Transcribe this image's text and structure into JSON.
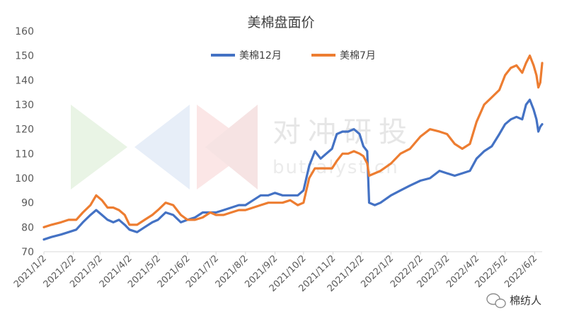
{
  "chart_data": {
    "type": "line",
    "title": "美棉盘面价",
    "xlabel": "",
    "ylabel": "",
    "ylim": [
      70,
      160
    ],
    "yticks": [
      70,
      80,
      90,
      100,
      110,
      120,
      130,
      140,
      150,
      160
    ],
    "x_ticks": [
      "2021/1/2",
      "2021/2/2",
      "2021/3/2",
      "2021/4/2",
      "2021/5/2",
      "2021/6/2",
      "2021/7/2",
      "2021/8/2",
      "2021/9/2",
      "2021/10/2",
      "2021/11/2",
      "2021/12/2",
      "2022/1/2",
      "2022/2/2",
      "2022/3/2",
      "2022/4/2",
      "2022/5/2",
      "2022/6/2"
    ],
    "xlim": [
      "2021-01-02",
      "2022-06-10"
    ],
    "grid": false,
    "legend_position": "top-center",
    "series": [
      {
        "name": "美棉12月",
        "color": "#4472C4",
        "points": [
          [
            "2021-01-02",
            75
          ],
          [
            "2021-01-10",
            76
          ],
          [
            "2021-01-20",
            77
          ],
          [
            "2021-01-28",
            78
          ],
          [
            "2021-02-05",
            79
          ],
          [
            "2021-02-12",
            82
          ],
          [
            "2021-02-20",
            85
          ],
          [
            "2021-02-26",
            87
          ],
          [
            "2021-03-04",
            85
          ],
          [
            "2021-03-10",
            83
          ],
          [
            "2021-03-16",
            82
          ],
          [
            "2021-03-22",
            83
          ],
          [
            "2021-03-28",
            81
          ],
          [
            "2021-04-02",
            79
          ],
          [
            "2021-04-10",
            78
          ],
          [
            "2021-04-18",
            80
          ],
          [
            "2021-04-26",
            82
          ],
          [
            "2021-05-02",
            83
          ],
          [
            "2021-05-10",
            86
          ],
          [
            "2021-05-18",
            85
          ],
          [
            "2021-05-26",
            82
          ],
          [
            "2021-06-02",
            83
          ],
          [
            "2021-06-10",
            84
          ],
          [
            "2021-06-18",
            86
          ],
          [
            "2021-06-26",
            86
          ],
          [
            "2021-07-02",
            86
          ],
          [
            "2021-07-10",
            87
          ],
          [
            "2021-07-18",
            88
          ],
          [
            "2021-07-26",
            89
          ],
          [
            "2021-08-02",
            89
          ],
          [
            "2021-08-10",
            91
          ],
          [
            "2021-08-18",
            93
          ],
          [
            "2021-08-26",
            93
          ],
          [
            "2021-09-02",
            94
          ],
          [
            "2021-09-10",
            93
          ],
          [
            "2021-09-18",
            93
          ],
          [
            "2021-09-26",
            93
          ],
          [
            "2021-10-02",
            95
          ],
          [
            "2021-10-08",
            105
          ],
          [
            "2021-10-14",
            111
          ],
          [
            "2021-10-20",
            108
          ],
          [
            "2021-10-26",
            110
          ],
          [
            "2021-11-01",
            112
          ],
          [
            "2021-11-06",
            118
          ],
          [
            "2021-11-12",
            119
          ],
          [
            "2021-11-18",
            119
          ],
          [
            "2021-11-24",
            120
          ],
          [
            "2021-11-30",
            118
          ],
          [
            "2021-12-04",
            113
          ],
          [
            "2021-12-08",
            111
          ],
          [
            "2021-12-10",
            90
          ],
          [
            "2021-12-16",
            89
          ],
          [
            "2021-12-22",
            90
          ],
          [
            "2022-01-02",
            93
          ],
          [
            "2022-01-12",
            95
          ],
          [
            "2022-01-22",
            97
          ],
          [
            "2022-02-02",
            99
          ],
          [
            "2022-02-12",
            100
          ],
          [
            "2022-02-22",
            103
          ],
          [
            "2022-03-02",
            102
          ],
          [
            "2022-03-10",
            101
          ],
          [
            "2022-03-18",
            102
          ],
          [
            "2022-03-26",
            103
          ],
          [
            "2022-04-02",
            108
          ],
          [
            "2022-04-10",
            111
          ],
          [
            "2022-04-18",
            113
          ],
          [
            "2022-04-26",
            118
          ],
          [
            "2022-05-02",
            122
          ],
          [
            "2022-05-08",
            124
          ],
          [
            "2022-05-14",
            125
          ],
          [
            "2022-05-20",
            124
          ],
          [
            "2022-05-24",
            130
          ],
          [
            "2022-05-28",
            132
          ],
          [
            "2022-06-01",
            128
          ],
          [
            "2022-06-04",
            124
          ],
          [
            "2022-06-06",
            119
          ],
          [
            "2022-06-08",
            121
          ],
          [
            "2022-06-10",
            122
          ]
        ]
      },
      {
        "name": "美棉7月",
        "color": "#ED7D31",
        "points": [
          [
            "2021-01-02",
            80
          ],
          [
            "2021-01-10",
            81
          ],
          [
            "2021-01-20",
            82
          ],
          [
            "2021-01-28",
            83
          ],
          [
            "2021-02-05",
            83
          ],
          [
            "2021-02-12",
            86
          ],
          [
            "2021-02-20",
            89
          ],
          [
            "2021-02-26",
            93
          ],
          [
            "2021-03-04",
            91
          ],
          [
            "2021-03-10",
            88
          ],
          [
            "2021-03-16",
            88
          ],
          [
            "2021-03-22",
            87
          ],
          [
            "2021-03-28",
            85
          ],
          [
            "2021-04-02",
            81
          ],
          [
            "2021-04-10",
            81
          ],
          [
            "2021-04-18",
            83
          ],
          [
            "2021-04-26",
            85
          ],
          [
            "2021-05-02",
            87
          ],
          [
            "2021-05-10",
            90
          ],
          [
            "2021-05-18",
            89
          ],
          [
            "2021-05-26",
            85
          ],
          [
            "2021-06-02",
            83
          ],
          [
            "2021-06-10",
            83
          ],
          [
            "2021-06-18",
            84
          ],
          [
            "2021-06-26",
            86
          ],
          [
            "2021-07-02",
            85
          ],
          [
            "2021-07-10",
            85
          ],
          [
            "2021-07-18",
            86
          ],
          [
            "2021-07-26",
            87
          ],
          [
            "2021-08-02",
            87
          ],
          [
            "2021-08-10",
            88
          ],
          [
            "2021-08-18",
            89
          ],
          [
            "2021-08-26",
            90
          ],
          [
            "2021-09-02",
            90
          ],
          [
            "2021-09-10",
            90
          ],
          [
            "2021-09-18",
            91
          ],
          [
            "2021-09-26",
            89
          ],
          [
            "2021-10-02",
            90
          ],
          [
            "2021-10-08",
            100
          ],
          [
            "2021-10-14",
            104
          ],
          [
            "2021-10-20",
            104
          ],
          [
            "2021-10-26",
            104
          ],
          [
            "2021-11-01",
            104
          ],
          [
            "2021-11-06",
            107
          ],
          [
            "2021-11-12",
            110
          ],
          [
            "2021-11-18",
            110
          ],
          [
            "2021-11-24",
            111
          ],
          [
            "2021-11-30",
            110
          ],
          [
            "2021-12-04",
            109
          ],
          [
            "2021-12-08",
            106
          ],
          [
            "2021-12-10",
            101
          ],
          [
            "2021-12-16",
            102
          ],
          [
            "2021-12-22",
            103
          ],
          [
            "2022-01-02",
            106
          ],
          [
            "2022-01-12",
            110
          ],
          [
            "2022-01-22",
            112
          ],
          [
            "2022-02-02",
            117
          ],
          [
            "2022-02-12",
            120
          ],
          [
            "2022-02-22",
            119
          ],
          [
            "2022-03-02",
            118
          ],
          [
            "2022-03-10",
            114
          ],
          [
            "2022-03-18",
            112
          ],
          [
            "2022-03-26",
            114
          ],
          [
            "2022-04-02",
            123
          ],
          [
            "2022-04-10",
            130
          ],
          [
            "2022-04-18",
            133
          ],
          [
            "2022-04-26",
            136
          ],
          [
            "2022-05-02",
            142
          ],
          [
            "2022-05-08",
            145
          ],
          [
            "2022-05-14",
            146
          ],
          [
            "2022-05-20",
            143
          ],
          [
            "2022-05-24",
            147
          ],
          [
            "2022-05-28",
            150
          ],
          [
            "2022-06-01",
            146
          ],
          [
            "2022-06-04",
            142
          ],
          [
            "2022-06-06",
            137
          ],
          [
            "2022-06-08",
            139
          ],
          [
            "2022-06-10",
            147
          ]
        ]
      }
    ]
  },
  "watermark": {
    "text": "对冲研投",
    "subtext": "buttalyst.cn",
    "triangle_colors": [
      "#e9f4e5",
      "#e7eef8",
      "#fbe6e6",
      "#f6e3e3"
    ]
  },
  "brand": {
    "text": "棉纺人",
    "icon": "wechat-icon"
  }
}
